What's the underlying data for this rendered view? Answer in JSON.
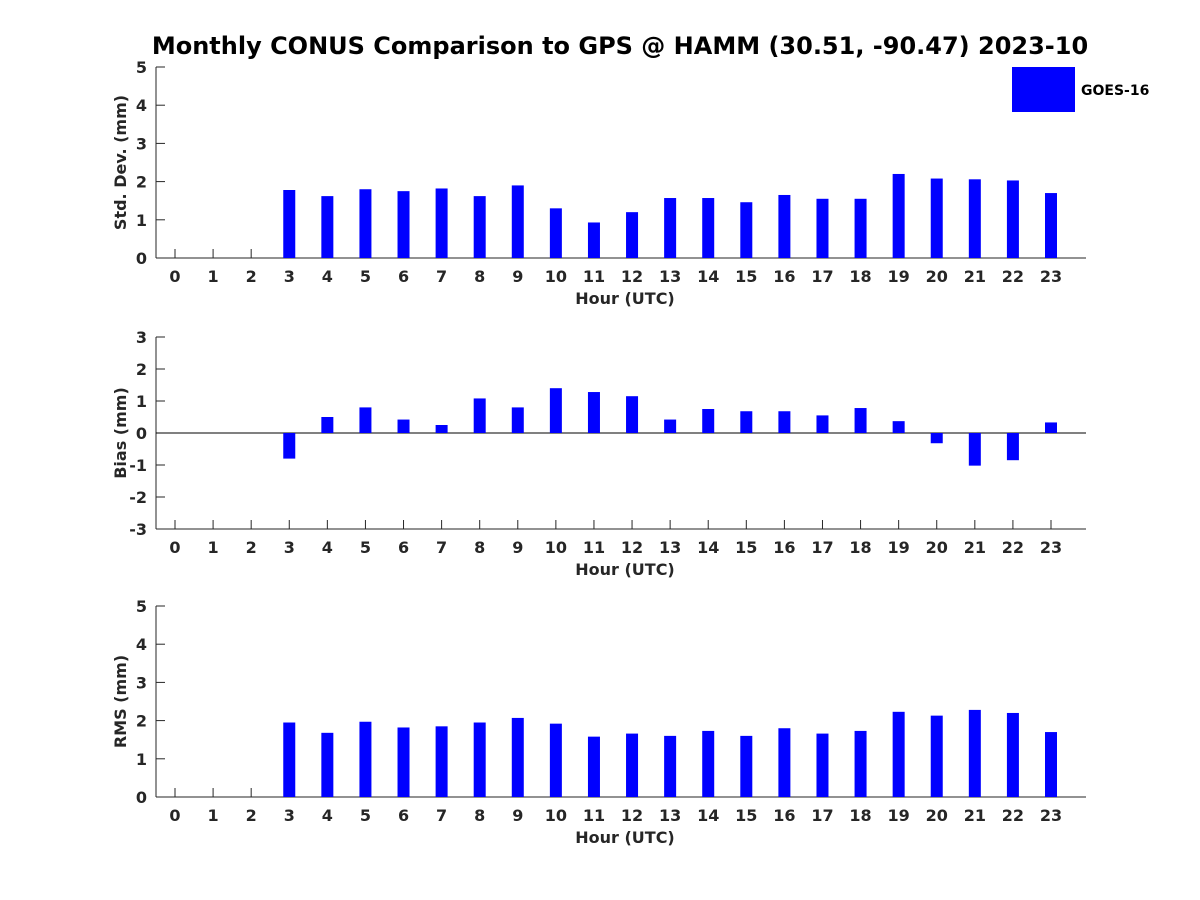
{
  "title": "Monthly CONUS Comparison to GPS @ HAMM (30.51, -90.47) 2023-10",
  "legend": {
    "label": "GOES-16",
    "color": "#0000ff",
    "placement": "top-right"
  },
  "chart_data": [
    {
      "type": "bar",
      "categories": [
        "0",
        "1",
        "2",
        "3",
        "4",
        "5",
        "6",
        "7",
        "8",
        "9",
        "10",
        "11",
        "12",
        "13",
        "14",
        "15",
        "16",
        "17",
        "18",
        "19",
        "20",
        "21",
        "22",
        "23"
      ],
      "series": [
        {
          "name": "GOES-16",
          "values": [
            null,
            null,
            null,
            1.78,
            1.62,
            1.8,
            1.75,
            1.82,
            1.62,
            1.9,
            1.3,
            0.93,
            1.2,
            1.57,
            1.57,
            1.46,
            1.65,
            1.55,
            1.55,
            2.2,
            2.08,
            2.06,
            2.03,
            1.7
          ]
        }
      ],
      "xlabel": "Hour (UTC)",
      "ylabel": "Std. Dev. (mm)",
      "ylim": [
        0,
        5
      ],
      "yticks": [
        "0",
        "1",
        "2",
        "3",
        "4",
        "5"
      ],
      "grid": false
    },
    {
      "type": "bar",
      "categories": [
        "0",
        "1",
        "2",
        "3",
        "4",
        "5",
        "6",
        "7",
        "8",
        "9",
        "10",
        "11",
        "12",
        "13",
        "14",
        "15",
        "16",
        "17",
        "18",
        "19",
        "20",
        "21",
        "22",
        "23"
      ],
      "series": [
        {
          "name": "GOES-16",
          "values": [
            null,
            null,
            null,
            -0.8,
            0.5,
            0.8,
            0.42,
            0.25,
            1.08,
            0.8,
            1.4,
            1.28,
            1.15,
            0.42,
            0.75,
            0.68,
            0.68,
            0.55,
            0.78,
            0.37,
            -0.32,
            -1.02,
            -0.85,
            0.33
          ]
        }
      ],
      "xlabel": "Hour (UTC)",
      "ylabel": "Bias (mm)",
      "ylim": [
        -3,
        3
      ],
      "yticks": [
        "-3",
        "-2",
        "-1",
        "0",
        "1",
        "2",
        "3"
      ],
      "grid": false,
      "zero_line": true
    },
    {
      "type": "bar",
      "categories": [
        "0",
        "1",
        "2",
        "3",
        "4",
        "5",
        "6",
        "7",
        "8",
        "9",
        "10",
        "11",
        "12",
        "13",
        "14",
        "15",
        "16",
        "17",
        "18",
        "19",
        "20",
        "21",
        "22",
        "23"
      ],
      "series": [
        {
          "name": "GOES-16",
          "values": [
            null,
            null,
            null,
            1.95,
            1.68,
            1.97,
            1.82,
            1.85,
            1.95,
            2.07,
            1.92,
            1.58,
            1.66,
            1.6,
            1.73,
            1.6,
            1.8,
            1.66,
            1.73,
            2.23,
            2.13,
            2.28,
            2.2,
            1.7
          ]
        }
      ],
      "xlabel": "Hour (UTC)",
      "ylabel": "RMS (mm)",
      "ylim": [
        0,
        5
      ],
      "yticks": [
        "0",
        "1",
        "2",
        "3",
        "4",
        "5"
      ],
      "grid": false
    }
  ]
}
